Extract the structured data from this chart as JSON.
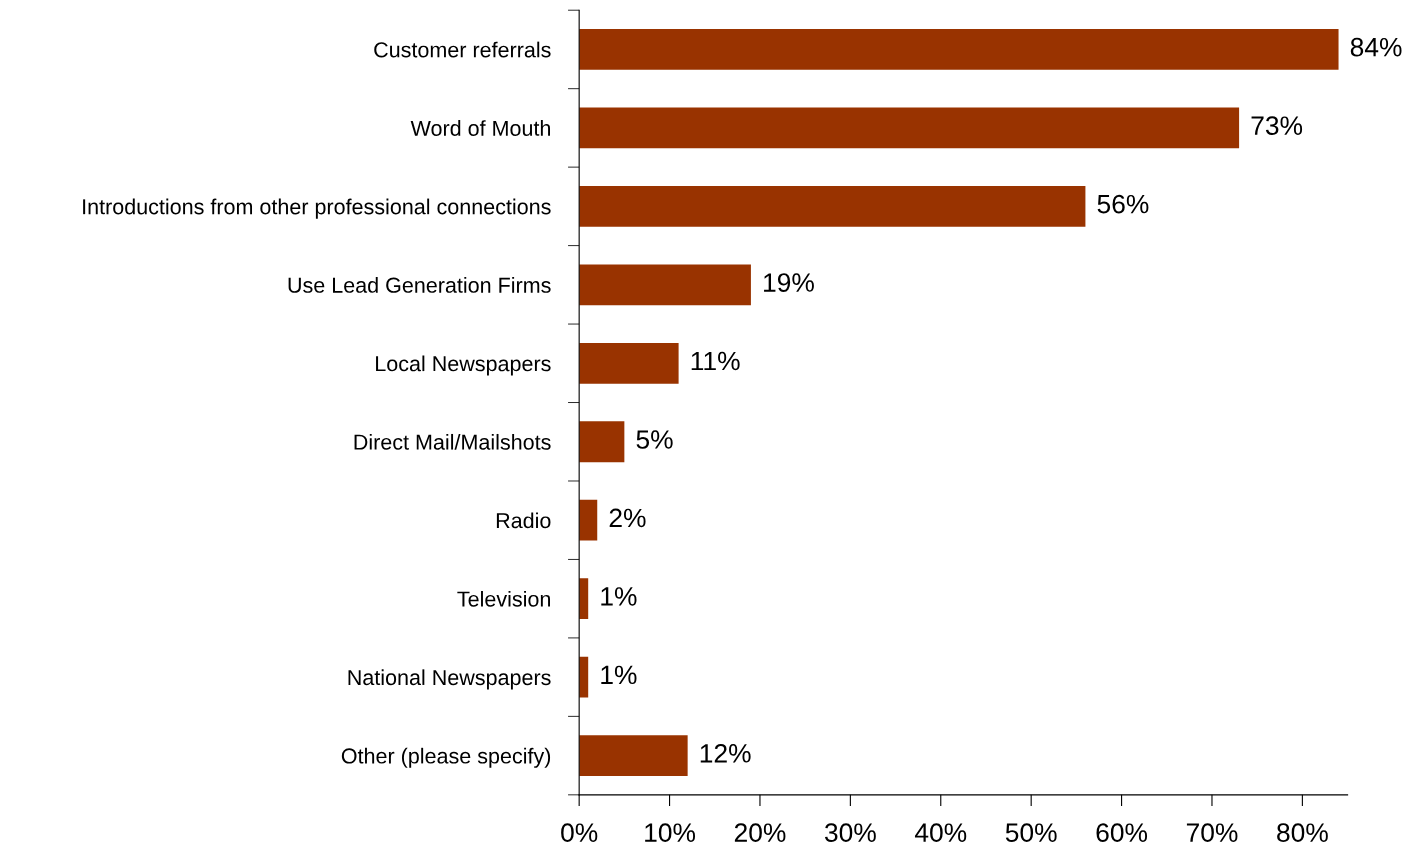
{
  "chart_data": {
    "type": "bar",
    "orientation": "horizontal",
    "categories": [
      "Customer referrals",
      "Word of Mouth",
      "Introductions from other professional connections",
      "Use Lead Generation Firms",
      "Local Newspapers",
      "Direct Mail/Mailshots",
      "Radio",
      "Television",
      "National Newspapers",
      "Other (please specify)"
    ],
    "values": [
      84,
      73,
      56,
      19,
      11,
      5,
      2,
      1,
      1,
      12
    ],
    "value_labels": [
      "84%",
      "73%",
      "56%",
      "19%",
      "11%",
      "5%",
      "2%",
      "1%",
      "1%",
      "12%"
    ],
    "color": "#993300",
    "xlim": [
      0,
      85
    ],
    "xticks": [
      {
        "value": 0,
        "label": "0%"
      },
      {
        "value": 10,
        "label": "10%"
      },
      {
        "value": 20,
        "label": "20%"
      },
      {
        "value": 30,
        "label": "30%"
      },
      {
        "value": 40,
        "label": "40%"
      },
      {
        "value": 50,
        "label": "50%"
      },
      {
        "value": 60,
        "label": "60%"
      },
      {
        "value": 70,
        "label": "70%"
      },
      {
        "value": 80,
        "label": "80%"
      }
    ],
    "grid": false,
    "legend": false
  }
}
